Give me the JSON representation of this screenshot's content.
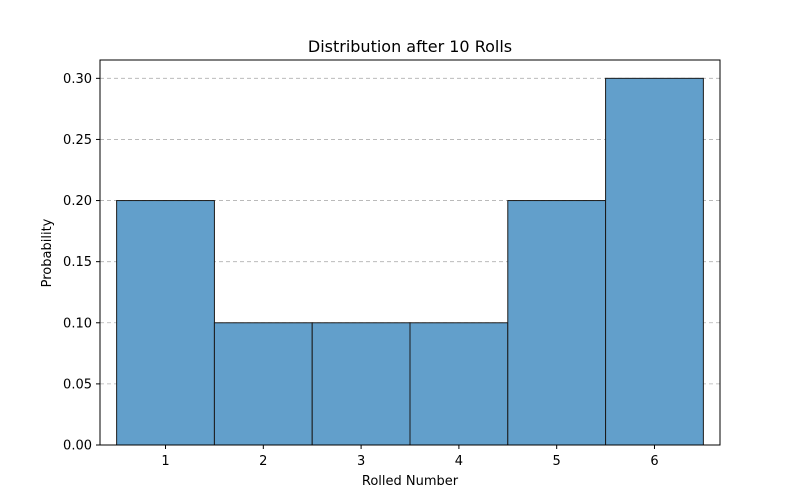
{
  "chart_data": {
    "type": "bar",
    "title": "Distribution after 10 Rolls",
    "xlabel": "Rolled Number",
    "ylabel": "Probability",
    "categories": [
      "1",
      "2",
      "3",
      "4",
      "5",
      "6"
    ],
    "values": [
      0.2,
      0.1,
      0.1,
      0.1,
      0.2,
      0.3
    ],
    "ylim": [
      0,
      0.315
    ],
    "yticks": [
      "0.00",
      "0.05",
      "0.10",
      "0.15",
      "0.20",
      "0.25",
      "0.30"
    ],
    "grid": "y-dashed",
    "legend": "none",
    "colors": {
      "bar_fill": "#629fcb",
      "bar_edge": "#1a1a1a",
      "grid": "#b0b0b0"
    }
  }
}
